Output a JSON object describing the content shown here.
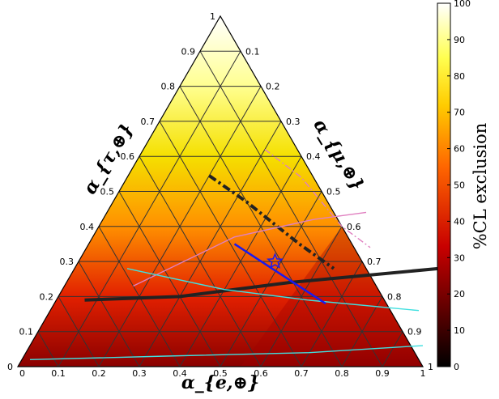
{
  "chart_data": {
    "type": "heatmap",
    "subtype": "ternary",
    "axes": {
      "bottom": {
        "label": "α_{e,⊕}",
        "ticks": [
          "0",
          "0.1",
          "0.2",
          "0.3",
          "0.4",
          "0.5",
          "0.6",
          "0.7",
          "0.8",
          "0.9",
          "1"
        ]
      },
      "left": {
        "label": "α_{τ,⊕}",
        "ticks": [
          "0",
          "0.1",
          "0.2",
          "0.3",
          "0.4",
          "0.5",
          "0.6",
          "0.7",
          "0.8",
          "0.9",
          "1"
        ]
      },
      "right": {
        "label": "α_{μ,⊕}",
        "ticks": [
          "1",
          "0.9",
          "0.8",
          "0.7",
          "0.6",
          "0.5",
          "0.4",
          "0.3",
          "0.2",
          "0.1"
        ]
      }
    },
    "colorbar": {
      "label": "%CL exclusion",
      "range": [
        0,
        100
      ],
      "ticks": [
        "0",
        "10",
        "20",
        "30",
        "40",
        "50",
        "60",
        "70",
        "80",
        "90",
        "100"
      ],
      "colormap": "hot"
    },
    "grid": true,
    "marker": {
      "shape": "star",
      "label": "",
      "alpha_e": 0.485,
      "alpha_tau": 0.3
    },
    "contours": [
      {
        "level": "black dash-dot",
        "style": "dashdot",
        "color": "#222222",
        "points": [
          [
            0.2,
            0.545
          ],
          [
            0.33,
            0.47
          ],
          [
            0.52,
            0.35
          ],
          [
            0.64,
            0.28
          ]
        ]
      },
      {
        "level": "black solid",
        "style": "solid",
        "color": "#222222",
        "points": [
          [
            0.07,
            0.19
          ],
          [
            0.3,
            0.2
          ],
          [
            0.55,
            0.24
          ],
          [
            0.9,
            0.28
          ]
        ]
      },
      {
        "level": "pink upper",
        "style": "dashdot",
        "color": "#e080c0",
        "points": [
          [
            0.3,
            0.62
          ],
          [
            0.43,
            0.54
          ],
          [
            0.6,
            0.4
          ],
          [
            0.7,
            0.34
          ]
        ]
      },
      {
        "level": "pink lower",
        "style": "solid",
        "color": "#e080c0",
        "points": [
          [
            0.17,
            0.23
          ],
          [
            0.35,
            0.37
          ],
          [
            0.52,
            0.42
          ],
          [
            0.64,
            0.44
          ]
        ]
      },
      {
        "level": "cyan middle",
        "style": "solid",
        "color": "#40e0e0",
        "points": [
          [
            0.13,
            0.28
          ],
          [
            0.4,
            0.22
          ],
          [
            0.62,
            0.19
          ],
          [
            0.91,
            0.16
          ]
        ]
      },
      {
        "level": "cyan bottom",
        "style": "solid",
        "color": "#40e0e0",
        "points": [
          [
            0.02,
            0.02
          ],
          [
            0.35,
            0.03
          ],
          [
            0.7,
            0.04
          ],
          [
            0.97,
            0.06
          ]
        ]
      }
    ],
    "segment": {
      "color": "#1a1aee",
      "points": [
        [
          0.36,
          0.35
        ],
        [
          0.67,
          0.18
        ]
      ]
    }
  }
}
